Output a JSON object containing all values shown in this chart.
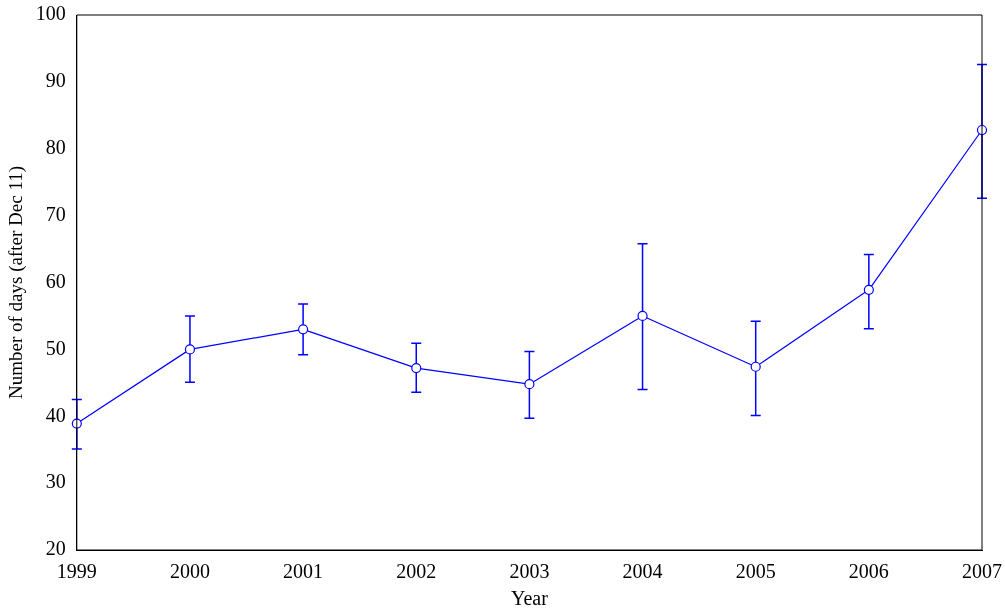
{
  "chart_data": {
    "type": "line",
    "xlabel": "Year",
    "ylabel": "Number of days (after Dec 11)",
    "categories": [
      "1999",
      "2000",
      "2001",
      "2002",
      "2003",
      "2004",
      "2005",
      "2006",
      "2007"
    ],
    "series": [
      {
        "color": "#0000ff",
        "values": [
          38.9,
          50,
          53,
          47.2,
          44.8,
          55,
          47.4,
          58.9,
          82.8
        ],
        "errors": [
          [
            35.1,
            42.5
          ],
          [
            45.1,
            55
          ],
          [
            49.2,
            56.8
          ],
          [
            43.6,
            50.9
          ],
          [
            39.7,
            49.7
          ],
          [
            44,
            65.8
          ],
          [
            40.1,
            54.2
          ],
          [
            53.1,
            64.2
          ],
          [
            72.6,
            92.6
          ]
        ]
      }
    ],
    "ylim": [
      20,
      100
    ],
    "yticks": [
      20,
      30,
      40,
      50,
      60,
      70,
      80,
      90,
      100
    ],
    "grid": false,
    "legend": false,
    "marker": "circle",
    "line_style": "solid"
  }
}
